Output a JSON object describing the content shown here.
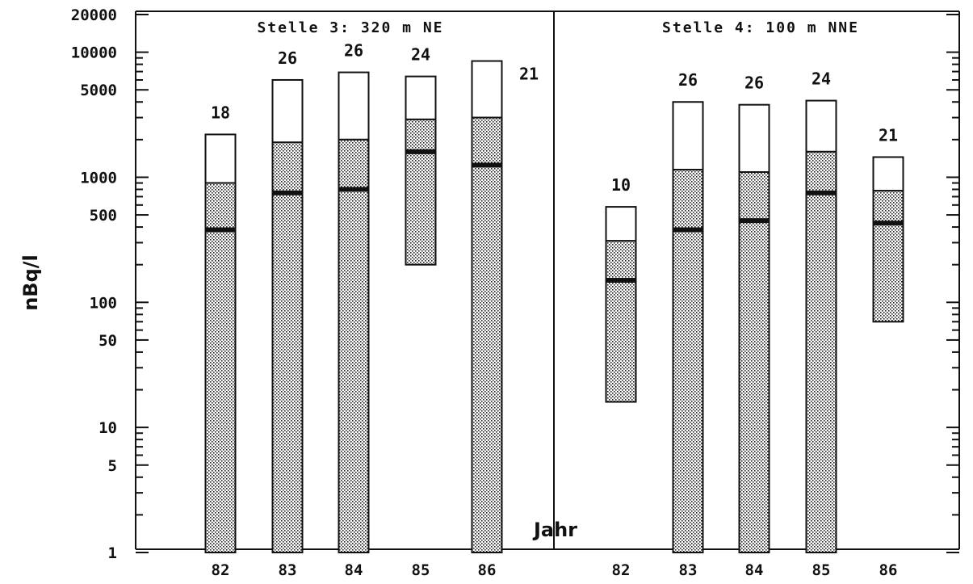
{
  "chart_data": {
    "type": "bar",
    "scale": "log",
    "ylabel": "nBq/l",
    "xlabel": "Jahr",
    "ylim": [
      1,
      20000
    ],
    "yticks_labeled": [
      "1",
      "5",
      "10",
      "50",
      "100",
      "500",
      "1000",
      "5000",
      "10000",
      "20000"
    ],
    "ytick_values": [
      1,
      5,
      10,
      50,
      100,
      500,
      1000,
      5000,
      10000,
      20000
    ],
    "panels": [
      {
        "title": "Stelle 3: 320 m NE",
        "bars": [
          {
            "year": "82",
            "n": "18",
            "min": 1,
            "median": 380,
            "p_upper": 900,
            "max": 2200
          },
          {
            "year": "83",
            "n": "26",
            "min": 1,
            "median": 750,
            "p_upper": 1900,
            "max": 6000
          },
          {
            "year": "84",
            "n": "26",
            "min": 1,
            "median": 800,
            "p_upper": 2000,
            "max": 6900
          },
          {
            "year": "85",
            "n": "24",
            "min": 200,
            "median": 1600,
            "p_upper": 2900,
            "max": 6400
          },
          {
            "year": "86",
            "n": "21",
            "min": 1,
            "median": 1250,
            "p_upper": 3000,
            "max": 8500
          }
        ]
      },
      {
        "title": "Stelle 4: 100 m NNE",
        "bars": [
          {
            "year": "82",
            "n": "10",
            "min": 16,
            "median": 150,
            "p_upper": 310,
            "max": 580
          },
          {
            "year": "83",
            "n": "26",
            "min": 1,
            "median": 380,
            "p_upper": 1150,
            "max": 4000
          },
          {
            "year": "84",
            "n": "26",
            "min": 1,
            "median": 450,
            "p_upper": 1100,
            "max": 3800
          },
          {
            "year": "85",
            "n": "24",
            "min": 1,
            "median": 750,
            "p_upper": 1600,
            "max": 4100
          },
          {
            "year": "86",
            "n": "21",
            "min": 70,
            "median": 430,
            "p_upper": 780,
            "max": 1450
          }
        ]
      }
    ],
    "legend": "none",
    "grid": false
  }
}
